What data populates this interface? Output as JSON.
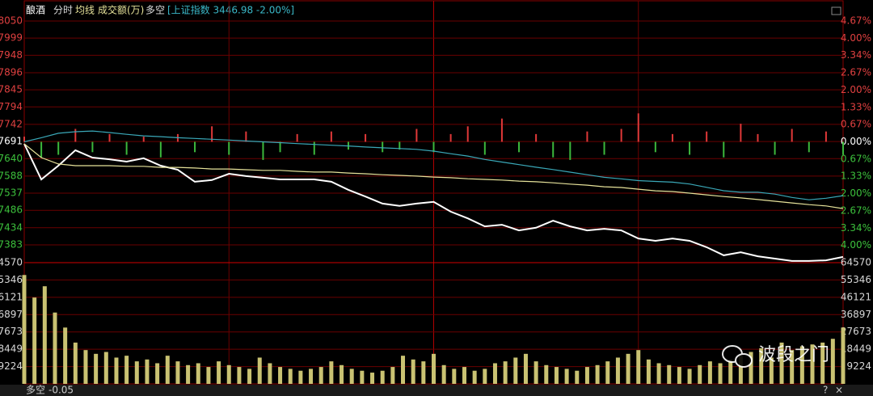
{
  "header": {
    "sector": "酿酒",
    "tabs": [
      "分时",
      "均线",
      "成交额(万)",
      "多空"
    ],
    "index": "[上证指数 3446.98 -2.00%]"
  },
  "chart_data": [
    {
      "type": "line",
      "x": [
        0,
        5,
        10,
        15,
        20,
        25,
        30,
        35,
        40,
        45,
        50,
        55,
        60,
        65,
        70,
        75,
        80,
        85,
        90,
        95,
        100,
        105,
        110,
        115,
        120,
        125,
        130,
        135,
        140,
        145,
        150,
        155,
        160,
        165,
        170,
        175,
        180,
        185,
        190,
        195,
        200,
        205,
        210,
        215,
        220,
        225,
        230,
        235,
        240
      ],
      "xlim": [
        0,
        240
      ],
      "ylim": [
        7330,
        8050
      ],
      "yticks": [
        8050,
        7999,
        7948,
        7896,
        7845,
        7794,
        7742,
        7691,
        7640,
        7588,
        7537,
        7486,
        7434,
        7383
      ],
      "y2lim": [
        -4.67,
        4.67
      ],
      "y2ticks": [
        {
          "value": 4.67,
          "label": "4.67%"
        },
        {
          "value": 4.0,
          "label": "4.00%"
        },
        {
          "value": 3.34,
          "label": "3.34%"
        },
        {
          "value": 2.67,
          "label": "2.67%"
        },
        {
          "value": 2.0,
          "label": "2.00%"
        },
        {
          "value": 1.33,
          "label": "1.33%"
        },
        {
          "value": 0.67,
          "label": "0.67%"
        },
        {
          "value": 0,
          "label": "0.00%"
        },
        {
          "value": -0.67,
          "label": "0.67%"
        },
        {
          "value": -1.33,
          "label": "1.33%"
        },
        {
          "value": -2.0,
          "label": "2.00%"
        },
        {
          "value": -2.67,
          "label": "2.67%"
        },
        {
          "value": -3.34,
          "label": "3.34%"
        },
        {
          "value": -4.0,
          "label": "4.00%"
        }
      ],
      "grid": true,
      "series": [
        {
          "color": "#ffffff",
          "values": [
            7684,
            7578,
            7619,
            7665,
            7643,
            7638,
            7631,
            7641,
            7619,
            7607,
            7571,
            7576,
            7595,
            7588,
            7583,
            7578,
            7578,
            7578,
            7571,
            7547,
            7527,
            7506,
            7499,
            7506,
            7511,
            7482,
            7462,
            7438,
            7443,
            7426,
            7434,
            7455,
            7438,
            7426,
            7431,
            7426,
            7402,
            7395,
            7402,
            7395,
            7376,
            7352,
            7361,
            7349,
            7342,
            7335,
            7335,
            7337,
            7347
          ]
        },
        {
          "color": "#e6e29a",
          "values": [
            7684,
            7643,
            7624,
            7619,
            7619,
            7619,
            7617,
            7617,
            7614,
            7614,
            7612,
            7609,
            7609,
            7607,
            7605,
            7605,
            7602,
            7600,
            7600,
            7597,
            7595,
            7592,
            7590,
            7588,
            7585,
            7583,
            7580,
            7578,
            7576,
            7573,
            7571,
            7568,
            7564,
            7561,
            7556,
            7554,
            7549,
            7544,
            7542,
            7537,
            7532,
            7527,
            7523,
            7518,
            7513,
            7508,
            7503,
            7499,
            7491
          ]
        },
        {
          "color": "#3aa8b8",
          "axis": "y2",
          "values": [
            0,
            0.16,
            0.33,
            0.39,
            0.42,
            0.36,
            0.29,
            0.23,
            0.2,
            0.16,
            0.13,
            0.1,
            0.07,
            0.03,
            0,
            -0.03,
            -0.07,
            -0.1,
            -0.13,
            -0.16,
            -0.2,
            -0.23,
            -0.26,
            -0.29,
            -0.36,
            -0.46,
            -0.55,
            -0.68,
            -0.78,
            -0.88,
            -0.98,
            -1.07,
            -1.17,
            -1.27,
            -1.37,
            -1.43,
            -1.5,
            -1.53,
            -1.56,
            -1.63,
            -1.76,
            -1.89,
            -1.95,
            -1.95,
            -2.02,
            -2.15,
            -2.24,
            -2.18,
            -2.08
          ]
        },
        {
          "type": "bar",
          "axis": "y2",
          "up_color": "#e03838",
          "down_color": "#3cb83c",
          "values": [
            0.2,
            -0.6,
            -0.5,
            0.5,
            -0.4,
            0.3,
            -0.5,
            0.2,
            -0.6,
            0.3,
            -0.4,
            0.6,
            -0.5,
            0.4,
            -0.7,
            -0.4,
            0.3,
            -0.5,
            0.4,
            -0.3,
            0.3,
            -0.4,
            -0.3,
            0.5,
            -0.4,
            0.3,
            0.6,
            -0.5,
            0.9,
            -0.4,
            0.3,
            -0.6,
            -0.7,
            0.4,
            -0.5,
            0.5,
            1.1,
            -0.4,
            0.3,
            -0.5,
            0.4,
            -0.6,
            0.7,
            0.3,
            -0.5,
            0.5,
            -0.4,
            0.4,
            -0.5
          ]
        }
      ]
    },
    {
      "type": "bar",
      "x": [
        0,
        3,
        6,
        9,
        12,
        15,
        18,
        21,
        24,
        27,
        30,
        33,
        36,
        39,
        42,
        45,
        48,
        51,
        54,
        57,
        60,
        63,
        66,
        69,
        72,
        75,
        78,
        81,
        84,
        87,
        90,
        93,
        96,
        99,
        102,
        105,
        108,
        111,
        114,
        117,
        120,
        123,
        126,
        129,
        132,
        135,
        138,
        141,
        144,
        147,
        150,
        153,
        156,
        159,
        162,
        165,
        168,
        171,
        174,
        177,
        180,
        183,
        186,
        189,
        192,
        195,
        198,
        201,
        204,
        207,
        210,
        213,
        216,
        219,
        222,
        225,
        228,
        231,
        234,
        237,
        240
      ],
      "xlim": [
        0,
        240
      ],
      "ylim": [
        0,
        64570
      ],
      "yticks": [
        64570,
        55346,
        46121,
        36897,
        27673,
        18449,
        9224
      ],
      "grid": true,
      "color": "#c9c272",
      "values": [
        58000,
        46000,
        52000,
        38000,
        30000,
        22000,
        18000,
        16000,
        17000,
        14000,
        15000,
        12000,
        13000,
        11000,
        15000,
        12000,
        10000,
        11000,
        9000,
        12000,
        10000,
        9000,
        8000,
        14000,
        11000,
        9000,
        8000,
        7000,
        8000,
        9000,
        12000,
        10000,
        8000,
        7000,
        6000,
        7000,
        9000,
        15000,
        13000,
        12000,
        16000,
        10000,
        8000,
        9000,
        7000,
        8000,
        11000,
        12000,
        14000,
        16000,
        12000,
        10000,
        9000,
        8000,
        7000,
        9000,
        10000,
        12000,
        14000,
        16000,
        18000,
        13000,
        11000,
        10000,
        9000,
        8000,
        10000,
        12000,
        11000,
        13000,
        15000,
        17000,
        19000,
        14000,
        22000,
        18000,
        20000,
        21000,
        22000,
        24000,
        30000
      ]
    }
  ],
  "footer": {
    "label": "多空",
    "value": -0.05,
    "buttons": [
      "?",
      "×"
    ]
  },
  "watermark": "波段之门"
}
